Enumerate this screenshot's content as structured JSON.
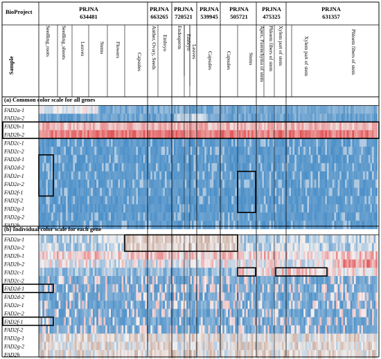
{
  "chart_data": {
    "type": "heatmap",
    "header": {
      "bioproject_label": "BioProject",
      "sample_label": "Sample",
      "projects": [
        {
          "line1": "PRJNA",
          "line2": "634481"
        },
        {
          "line1": "PRJNA",
          "line2": "663265"
        },
        {
          "line1": "PRJNA",
          "line2": "720521"
        },
        {
          "line1": "PRJNA",
          "line2": "539945"
        },
        {
          "line1": "PRJNA",
          "line2": "505721"
        },
        {
          "line1": "PRJNA",
          "line2": "475325"
        },
        {
          "line1": "PRJNA",
          "line2": "631357"
        }
      ],
      "samples": [
        "Seedling_roots",
        "Seedling_shoots",
        "Leaves",
        "Stems",
        "Flowers",
        "Capsules",
        "Anther, Ovary, Seeds",
        "Embryo",
        "Endosperm",
        "Embryo",
        "Leaves",
        "Capsules",
        "Capsules",
        "Stems",
        "Apex, Parenchyma of stem",
        "Phloem fibers of stem",
        "Xylem part of stem",
        "Xylem part of stem",
        "Phloem fibers of stem"
      ]
    },
    "panels": [
      {
        "label": "(a) Common color scale for all genes"
      },
      {
        "label": "(b) Individual color scale for each gene"
      }
    ],
    "genes": [
      "FAD2a-1",
      "FAD2a-2",
      "FAD2b-1",
      "FAD2b-2",
      "FAD2c-1",
      "FAD2c-2",
      "FAD2d-1",
      "FAD2d-2",
      "FAD2e-1",
      "FAD2e-2",
      "FAD2f-1",
      "FAD2f-2",
      "FAD2g-1",
      "FAD2g-2",
      "FAD2h"
    ],
    "colors": {
      "low": "#3f88c5",
      "mid": "#f3f1f1",
      "high": "#e0484a",
      "alt_high": "#c7a79a"
    }
  }
}
